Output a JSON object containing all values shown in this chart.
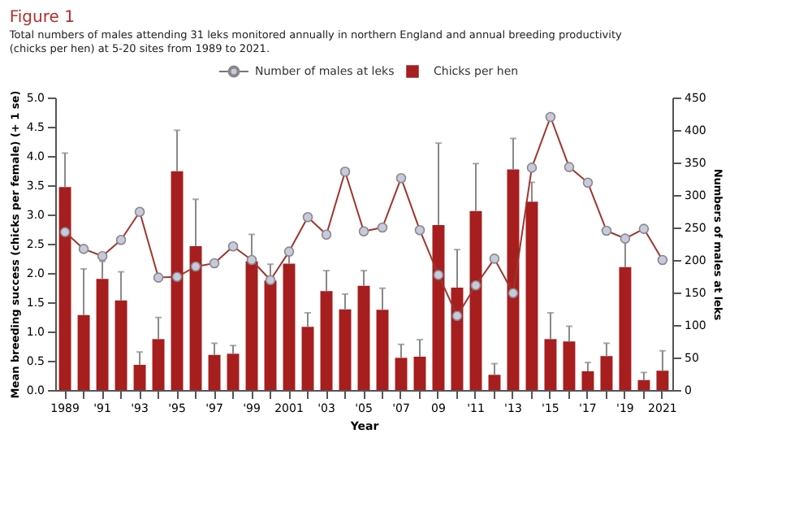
{
  "chart_data": {
    "type": "bar",
    "title": "Figure 1",
    "subtitle": "Total numbers of males attending 31 leks monitored annually in northern England and annual breeding productivity (chicks per hen) at 5-20 sites from 1989 to 2021.",
    "xlabel": "Year",
    "ylabel": "Mean breeding success (chicks per female) (+ 1 se)",
    "y2label": "Numbers of males at leks",
    "categories": [
      "1989",
      null,
      "'91",
      null,
      "'93",
      null,
      "'95",
      null,
      "'97",
      null,
      "'99",
      null,
      "2001",
      null,
      "'03",
      null,
      "'05",
      null,
      "'07",
      null,
      "09",
      null,
      "'11",
      null,
      "'13",
      null,
      "'15",
      null,
      "'17",
      null,
      "'19",
      null,
      "2021"
    ],
    "series": [
      {
        "name": "Number of males at leks",
        "type": "line",
        "axis": "y2",
        "color": "#a0342e",
        "marker": "circle",
        "values": [
          243,
          217,
          206,
          231,
          274,
          173,
          174,
          190,
          195,
          221,
          200,
          169,
          213,
          266,
          239,
          336,
          244,
          250,
          326,
          246,
          177,
          114,
          161,
          202,
          149,
          342,
          420,
          343,
          319,
          245,
          233,
          248,
          200
        ]
      },
      {
        "name": "Chicks per hen",
        "type": "bar",
        "color": "#a61e1e",
        "values": [
          3.47,
          1.28,
          1.9,
          1.53,
          0.43,
          0.87,
          3.74,
          2.46,
          0.6,
          0.62,
          2.2,
          1.87,
          2.16,
          1.08,
          1.69,
          1.38,
          1.78,
          1.37,
          0.55,
          0.57,
          2.82,
          1.75,
          3.06,
          0.26,
          3.77,
          3.22,
          0.87,
          0.83,
          0.32,
          0.58,
          2.1,
          0.17,
          0.33
        ],
        "errors": [
          [
            3.47,
            4.05
          ],
          [
            1.28,
            2.07
          ],
          [
            1.9,
            2.2
          ],
          [
            1.53,
            2.02
          ],
          [
            0.43,
            0.65
          ],
          [
            0.87,
            1.24
          ],
          [
            3.74,
            4.44
          ],
          [
            2.46,
            3.26
          ],
          [
            0.6,
            0.8
          ],
          [
            0.62,
            0.76
          ],
          [
            2.2,
            2.66
          ],
          [
            1.87,
            2.15
          ],
          [
            2.16,
            2.3
          ],
          [
            1.08,
            1.32
          ],
          [
            1.69,
            2.04
          ],
          [
            1.38,
            1.64
          ],
          [
            1.78,
            2.04
          ],
          [
            1.37,
            1.74
          ],
          [
            0.55,
            0.78
          ],
          [
            0.57,
            0.86
          ],
          [
            2.82,
            4.22
          ],
          [
            1.75,
            2.4
          ],
          [
            3.06,
            3.87
          ],
          [
            0.26,
            0.45
          ],
          [
            3.77,
            4.3
          ],
          [
            3.22,
            3.55
          ],
          [
            0.87,
            1.32
          ],
          [
            0.83,
            1.09
          ],
          [
            0.32,
            0.47
          ],
          [
            0.58,
            0.8
          ],
          [
            2.1,
            2.55
          ],
          [
            0.17,
            0.3
          ],
          [
            0.33,
            0.67
          ]
        ]
      }
    ],
    "ylim": [
      0,
      5
    ],
    "yticks": [
      {
        "value": 0,
        "label": "0.0"
      },
      0.5,
      {
        "value": 1,
        "label": "1.0"
      },
      1.5,
      {
        "value": 2,
        "label": "2.0"
      },
      2.5,
      {
        "value": 3,
        "label": "3.0"
      },
      3.5,
      {
        "value": 4,
        "label": "4.0"
      },
      4.5,
      {
        "value": 5,
        "label": "5.0"
      }
    ],
    "y2lim": [
      0,
      450
    ],
    "y2ticks": [
      0,
      50,
      100,
      150,
      200,
      250,
      300,
      350,
      400,
      450
    ],
    "legend": "top",
    "grid": false
  }
}
